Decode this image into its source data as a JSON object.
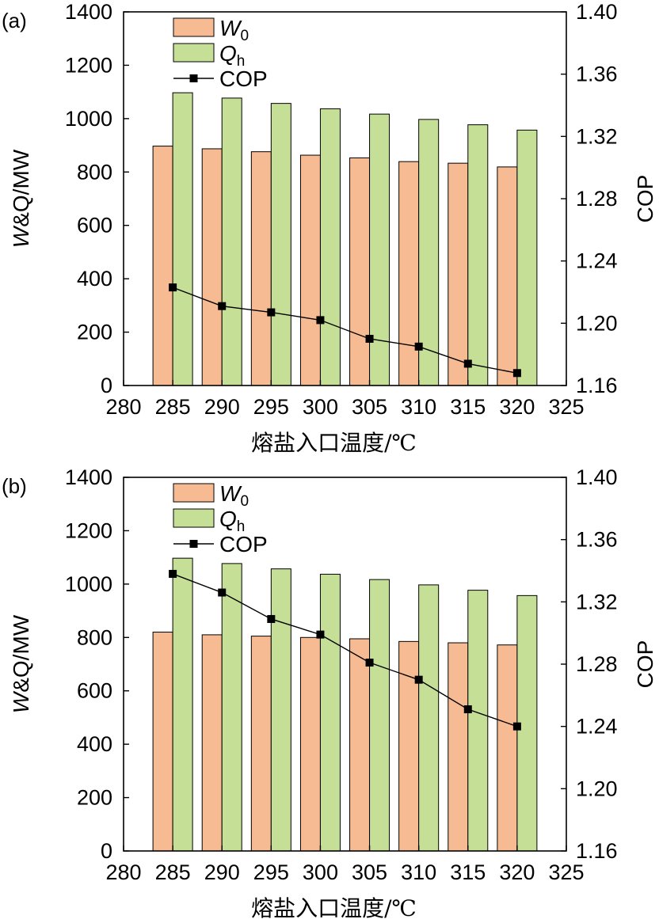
{
  "colors": {
    "w0": "#f7bb94",
    "qh": "#c5df97",
    "cop": "#000000"
  },
  "chart_data": [
    {
      "type": "bar",
      "panel_label": "(a)",
      "xlabel": "熔盐入口温度/℃",
      "ylabel_left": {
        "italic": "W",
        "rest": "&Q/MW"
      },
      "ylabel_right": "COP",
      "xlim": [
        280,
        325
      ],
      "xticks": [
        "280",
        "285",
        "290",
        "295",
        "300",
        "305",
        "310",
        "315",
        "320",
        "325"
      ],
      "ylim_left": [
        0,
        1400
      ],
      "yticks_left": [
        "0",
        "200",
        "400",
        "600",
        "800",
        "1000",
        "1200",
        "1400"
      ],
      "ylim_right": [
        1.16,
        1.4
      ],
      "yticks_right": [
        "1.16",
        "1.20",
        "1.24",
        "1.28",
        "1.32",
        "1.36",
        "1.40"
      ],
      "x": [
        285,
        290,
        295,
        300,
        305,
        310,
        315,
        320
      ],
      "legend_position": "top-center",
      "series": [
        {
          "name": "W0",
          "legend": {
            "main": "W",
            "sub": "0"
          },
          "axis": "left",
          "type": "bar",
          "values": [
            897,
            887,
            876,
            863,
            853,
            839,
            833,
            819
          ]
        },
        {
          "name": "Qh",
          "legend": {
            "main": "Q",
            "sub": "h"
          },
          "axis": "left",
          "type": "bar",
          "values": [
            1097,
            1077,
            1057,
            1037,
            1017,
            997,
            977,
            957
          ]
        },
        {
          "name": "COP",
          "legend": {
            "main": "COP",
            "sub": ""
          },
          "axis": "right",
          "type": "line",
          "values": [
            1.223,
            1.211,
            1.207,
            1.202,
            1.19,
            1.185,
            1.174,
            1.168
          ]
        }
      ]
    },
    {
      "type": "bar",
      "panel_label": "(b)",
      "xlabel": "熔盐入口温度/℃",
      "ylabel_left": {
        "italic": "W",
        "rest": "&Q/MW"
      },
      "ylabel_right": "COP",
      "xlim": [
        280,
        325
      ],
      "xticks": [
        "280",
        "285",
        "290",
        "295",
        "300",
        "305",
        "310",
        "315",
        "320",
        "325"
      ],
      "ylim_left": [
        0,
        1400
      ],
      "yticks_left": [
        "0",
        "200",
        "400",
        "600",
        "800",
        "1000",
        "1200",
        "1400"
      ],
      "ylim_right": [
        1.16,
        1.4
      ],
      "yticks_right": [
        "1.16",
        "1.20",
        "1.24",
        "1.28",
        "1.32",
        "1.36",
        "1.40"
      ],
      "x": [
        285,
        290,
        295,
        300,
        305,
        310,
        315,
        320
      ],
      "legend_position": "top-center",
      "series": [
        {
          "name": "W0",
          "legend": {
            "main": "W",
            "sub": "0"
          },
          "axis": "left",
          "type": "bar",
          "values": [
            820,
            810,
            805,
            800,
            795,
            785,
            780,
            772
          ]
        },
        {
          "name": "Qh",
          "legend": {
            "main": "Q",
            "sub": "h"
          },
          "axis": "left",
          "type": "bar",
          "values": [
            1097,
            1077,
            1057,
            1037,
            1017,
            997,
            977,
            957
          ]
        },
        {
          "name": "COP",
          "legend": {
            "main": "COP",
            "sub": ""
          },
          "axis": "right",
          "type": "line",
          "values": [
            1.338,
            1.326,
            1.309,
            1.299,
            1.281,
            1.27,
            1.251,
            1.24
          ]
        }
      ]
    }
  ]
}
